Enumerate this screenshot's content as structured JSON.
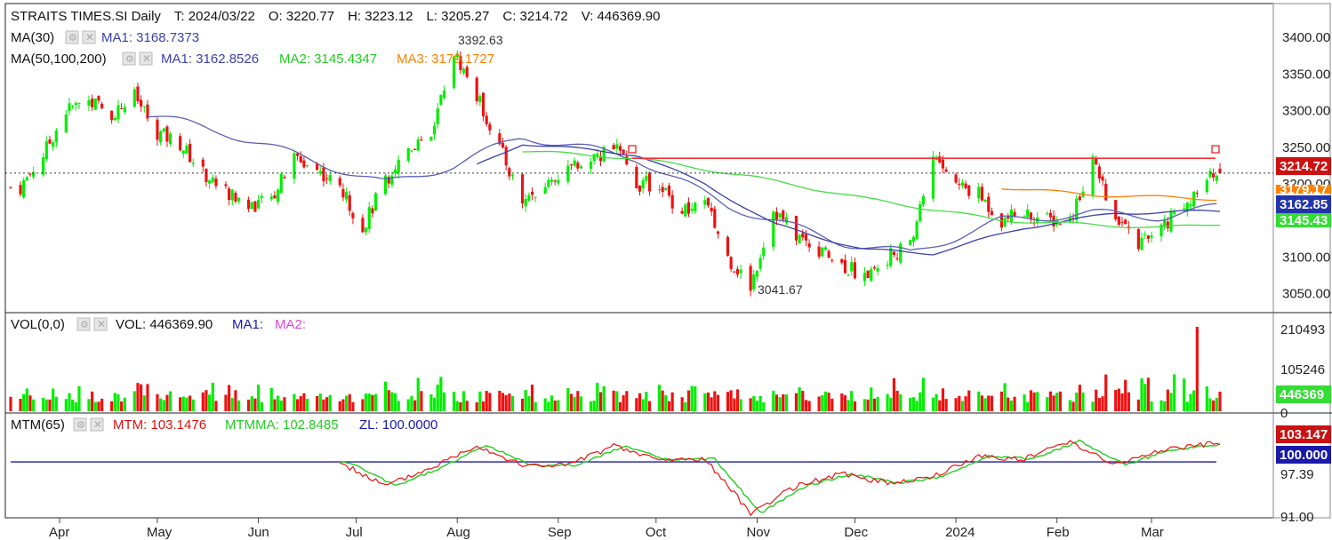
{
  "header": {
    "symbol": "STRAITS TIMES.SI Daily",
    "t": "T: 2024/03/22",
    "o": "O: 3220.77",
    "h": "H: 3223.12",
    "l": "L: 3205.27",
    "c": "C: 3214.72",
    "v": "V: 446369.90"
  },
  "legends": {
    "ma30": "MA(30)",
    "ma30_ma1": "MA1: 3168.7373",
    "ma3": "MA(50,100,200)",
    "ma3_ma1": "MA1: 3162.8526",
    "ma3_ma2": "MA2: 3145.4347",
    "ma3_ma3": "MA3: 3179.1727",
    "vol": "VOL(0,0)",
    "vol_value": "VOL: 446369.90",
    "vol_ma1": "MA1:",
    "vol_ma2": "MA2:",
    "mtm": "MTM(65)",
    "mtm_value": "MTM: 103.1476",
    "mtmma_value": "MTMMA: 102.8485",
    "zl_value": "ZL: 100.0000"
  },
  "annotations": {
    "high": "3392.63",
    "low": "3041.67"
  },
  "value_tags": {
    "close": "3214.72",
    "ma3": "3179.17",
    "ma1": "3162.85",
    "ma2": "3145.43",
    "vol": "446369",
    "mtm": "103.147",
    "zl": "100.000"
  },
  "colors": {
    "up": "#00ee00",
    "down": "#ee1111",
    "ma30": "#5a5fb4",
    "ma1": "#3b3fa8",
    "ma2": "#44dd44",
    "ma3": "#ff8000",
    "mtm": "#ee1111",
    "mtmma": "#22cc22",
    "zl": "#1a1aaa",
    "resistance": "#ee3333",
    "vol_ma2": "#dd44dd"
  },
  "chart_data": [
    {
      "type": "candlestick",
      "title": "STRAITS TIMES.SI Daily",
      "y_ticks": [
        3050,
        3100,
        3150,
        3200,
        3250,
        3300,
        3350,
        3400
      ],
      "y_tick_labels": [
        "3050.00",
        "3100.00",
        "3150.00",
        "3200.00",
        "3250.00",
        "3300.00",
        "3350.00",
        "3400.00"
      ],
      "ylim": [
        3020,
        3430
      ],
      "x_tick_labels": [
        "Apr",
        "May",
        "Jun",
        "Jul",
        "Aug",
        "Sep",
        "Oct",
        "Nov",
        "Dec",
        "2024",
        "Feb",
        "Mar"
      ],
      "last_bar": {
        "date": "2024/03/22",
        "open": 3220.77,
        "high": 3223.12,
        "low": 3205.27,
        "close": 3214.72
      },
      "extremes": {
        "high": 3392.63,
        "low": 3041.67
      },
      "close_keypoints": [
        {
          "date": "2023-03-20",
          "close": 3195
        },
        {
          "date": "2023-03-27",
          "close": 3240
        },
        {
          "date": "2023-04-03",
          "close": 3300
        },
        {
          "date": "2023-04-10",
          "close": 3315
        },
        {
          "date": "2023-04-17",
          "close": 3295
        },
        {
          "date": "2023-04-24",
          "close": 3320
        },
        {
          "date": "2023-05-01",
          "close": 3270
        },
        {
          "date": "2023-05-08",
          "close": 3255
        },
        {
          "date": "2023-05-15",
          "close": 3215
        },
        {
          "date": "2023-05-22",
          "close": 3190
        },
        {
          "date": "2023-05-29",
          "close": 3170
        },
        {
          "date": "2023-06-05",
          "close": 3180
        },
        {
          "date": "2023-06-12",
          "close": 3235
        },
        {
          "date": "2023-06-19",
          "close": 3220
        },
        {
          "date": "2023-06-26",
          "close": 3195
        },
        {
          "date": "2023-07-03",
          "close": 3140
        },
        {
          "date": "2023-07-10",
          "close": 3205
        },
        {
          "date": "2023-07-17",
          "close": 3250
        },
        {
          "date": "2023-07-24",
          "close": 3270
        },
        {
          "date": "2023-07-31",
          "close": 3380
        },
        {
          "date": "2023-08-07",
          "close": 3320
        },
        {
          "date": "2023-08-14",
          "close": 3250
        },
        {
          "date": "2023-08-21",
          "close": 3175
        },
        {
          "date": "2023-08-28",
          "close": 3200
        },
        {
          "date": "2023-09-04",
          "close": 3220
        },
        {
          "date": "2023-09-11",
          "close": 3230
        },
        {
          "date": "2023-09-18",
          "close": 3255
        },
        {
          "date": "2023-09-25",
          "close": 3200
        },
        {
          "date": "2023-10-02",
          "close": 3200
        },
        {
          "date": "2023-10-09",
          "close": 3160
        },
        {
          "date": "2023-10-16",
          "close": 3175
        },
        {
          "date": "2023-10-23",
          "close": 3100
        },
        {
          "date": "2023-10-30",
          "close": 3060
        },
        {
          "date": "2023-11-06",
          "close": 3165
        },
        {
          "date": "2023-11-13",
          "close": 3130
        },
        {
          "date": "2023-11-20",
          "close": 3110
        },
        {
          "date": "2023-11-27",
          "close": 3090
        },
        {
          "date": "2023-12-04",
          "close": 3075
        },
        {
          "date": "2023-12-11",
          "close": 3100
        },
        {
          "date": "2023-12-18",
          "close": 3115
        },
        {
          "date": "2023-12-25",
          "close": 3240
        },
        {
          "date": "2024-01-01",
          "close": 3200
        },
        {
          "date": "2024-01-08",
          "close": 3185
        },
        {
          "date": "2024-01-15",
          "close": 3150
        },
        {
          "date": "2024-01-22",
          "close": 3160
        },
        {
          "date": "2024-01-29",
          "close": 3150
        },
        {
          "date": "2024-02-05",
          "close": 3150
        },
        {
          "date": "2024-02-12",
          "close": 3235
        },
        {
          "date": "2024-02-19",
          "close": 3150
        },
        {
          "date": "2024-02-26",
          "close": 3120
        },
        {
          "date": "2024-03-04",
          "close": 3140
        },
        {
          "date": "2024-03-11",
          "close": 3170
        },
        {
          "date": "2024-03-18",
          "close": 3205
        },
        {
          "date": "2024-03-22",
          "close": 3214.72
        }
      ],
      "moving_averages": [
        {
          "name": "MA(30) MA1",
          "last": 3168.7373,
          "keypoints": [
            [
              3295,
              "2023-04-28"
            ],
            [
              3270,
              "2023-05-22"
            ],
            [
              3230,
              "2023-06-19"
            ],
            [
              3200,
              "2023-07-10"
            ],
            [
              3225,
              "2023-07-31"
            ],
            [
              3265,
              "2023-08-21"
            ],
            [
              3235,
              "2023-09-25"
            ],
            [
              3170,
              "2023-10-23"
            ],
            [
              3120,
              "2023-11-27"
            ],
            [
              3105,
              "2023-12-18"
            ],
            [
              3150,
              "2024-01-15"
            ],
            [
              3160,
              "2024-02-12"
            ],
            [
              3155,
              "2024-03-04"
            ],
            [
              3168.74,
              "2024-03-22"
            ]
          ]
        },
        {
          "name": "MA(50,100,200) MA1",
          "last": 3162.8526,
          "keypoints": [
            [
              3225,
              "2023-08-07"
            ],
            [
              3255,
              "2023-08-21"
            ],
            [
              3240,
              "2023-09-25"
            ],
            [
              3200,
              "2023-10-16"
            ],
            [
              3145,
              "2023-11-06"
            ],
            [
              3110,
              "2023-12-04"
            ],
            [
              3105,
              "2023-12-25"
            ],
            [
              3140,
              "2024-01-22"
            ],
            [
              3160,
              "2024-02-19"
            ],
            [
              3162.85,
              "2024-03-22"
            ]
          ]
        },
        {
          "name": "MA(50,100,200) MA2",
          "last": 3145.4347,
          "keypoints": [
            [
              3245,
              "2023-08-21"
            ],
            [
              3235,
              "2023-09-25"
            ],
            [
              3210,
              "2023-10-30"
            ],
            [
              3180,
              "2023-12-04"
            ],
            [
              3150,
              "2024-01-15"
            ],
            [
              3140,
              "2024-03-04"
            ],
            [
              3145.43,
              "2024-03-22"
            ]
          ]
        },
        {
          "name": "MA(50,100,200) MA3",
          "last": 3179.1727,
          "keypoints": [
            [
              3195,
              "2024-01-15"
            ],
            [
              3185,
              "2024-02-12"
            ],
            [
              3179.17,
              "2024-03-22"
            ]
          ]
        }
      ],
      "resistance_line": {
        "value": 3235,
        "from": "2023-09-29",
        "to": "2024-03-22"
      }
    },
    {
      "type": "bar",
      "title": "VOL(0,0)",
      "y_tick_labels": [
        "0",
        "105246",
        "210493"
      ],
      "ylim": [
        0,
        210493
      ],
      "last_value": 446369.9
    },
    {
      "type": "line",
      "title": "MTM(65)",
      "y_tick_labels": [
        "91.00",
        "97.39"
      ],
      "series": [
        {
          "name": "MTM",
          "last": 103.1476
        },
        {
          "name": "MTMMA",
          "last": 102.8485
        },
        {
          "name": "ZL",
          "last": 100.0
        }
      ],
      "ylim": [
        91,
        105
      ],
      "mtm_keypoints": [
        {
          "date": "2023-06-26",
          "value": 99.9
        },
        {
          "date": "2023-07-10",
          "value": 96.0
        },
        {
          "date": "2023-07-24",
          "value": 99.0
        },
        {
          "date": "2023-08-07",
          "value": 102.8
        },
        {
          "date": "2023-08-21",
          "value": 99.4
        },
        {
          "date": "2023-09-04",
          "value": 99.5
        },
        {
          "date": "2023-09-18",
          "value": 102.6
        },
        {
          "date": "2023-10-02",
          "value": 100.3
        },
        {
          "date": "2023-10-16",
          "value": 100.5
        },
        {
          "date": "2023-10-30",
          "value": 91.5
        },
        {
          "date": "2023-11-13",
          "value": 96.0
        },
        {
          "date": "2023-11-27",
          "value": 98.0
        },
        {
          "date": "2023-12-11",
          "value": 96.5
        },
        {
          "date": "2023-12-25",
          "value": 97.5
        },
        {
          "date": "2024-01-08",
          "value": 101.0
        },
        {
          "date": "2024-01-22",
          "value": 100.5
        },
        {
          "date": "2024-02-05",
          "value": 103.5
        },
        {
          "date": "2024-02-19",
          "value": 99.5
        },
        {
          "date": "2024-03-04",
          "value": 102.0
        },
        {
          "date": "2024-03-22",
          "value": 103.1476
        }
      ]
    }
  ]
}
